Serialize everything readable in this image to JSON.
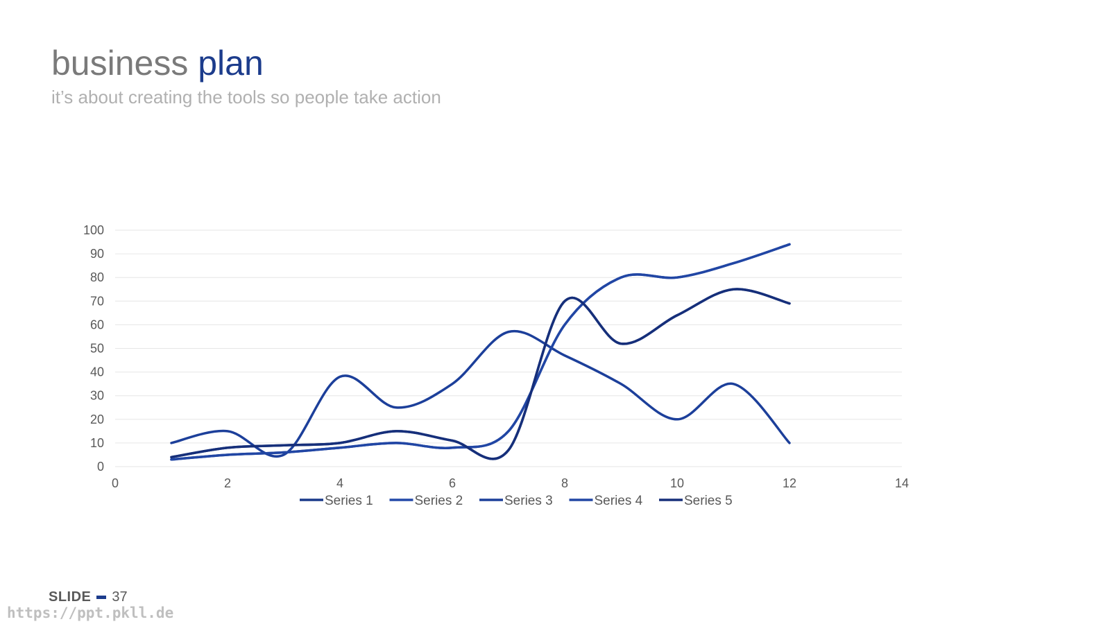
{
  "slide": {
    "title_main": "business",
    "title_accent": "plan",
    "subtitle": "it’s about creating the tools so people take action",
    "footer_label": "SLIDE",
    "footer_number": "37",
    "watermark": "https://ppt.pkll.de"
  },
  "colors": {
    "title_gray": "#7a7a7a",
    "accent": "#1c3c8c",
    "series": [
      "#1a3a8a",
      "#2349a8",
      "#1c3f9a",
      "#2146a4",
      "#162f7a"
    ]
  },
  "chart_data": {
    "type": "line",
    "smooth": true,
    "title": "",
    "xlabel": "",
    "ylabel": "",
    "xlim": [
      0,
      14
    ],
    "ylim": [
      0,
      100
    ],
    "xticks": [
      0,
      2,
      4,
      6,
      8,
      10,
      12,
      14
    ],
    "yticks": [
      0,
      10,
      20,
      30,
      40,
      50,
      60,
      70,
      80,
      90,
      100
    ],
    "grid": "horizontal",
    "legend_position": "bottom",
    "x": [
      1,
      2,
      3,
      4,
      5,
      6,
      7,
      8,
      9,
      10,
      11,
      12
    ],
    "series": [
      {
        "name": "Series 1",
        "values": [
          4,
          8,
          9,
          10,
          15,
          11,
          7,
          70,
          52,
          64,
          75,
          69
        ]
      },
      {
        "name": "Series 2",
        "values": [
          3,
          5,
          6,
          8,
          10,
          8,
          15,
          60,
          80,
          80,
          86,
          94
        ]
      },
      {
        "name": "Series 3",
        "values": [
          10,
          15,
          5,
          38,
          25,
          35,
          57,
          47,
          35,
          20,
          35,
          10
        ]
      },
      {
        "name": "Series 4",
        "values": [
          3,
          5,
          6,
          8,
          10,
          8,
          15,
          60,
          80,
          80,
          86,
          94
        ]
      },
      {
        "name": "Series 5",
        "values": [
          4,
          8,
          9,
          10,
          15,
          11,
          7,
          70,
          52,
          64,
          75,
          69
        ]
      }
    ]
  }
}
